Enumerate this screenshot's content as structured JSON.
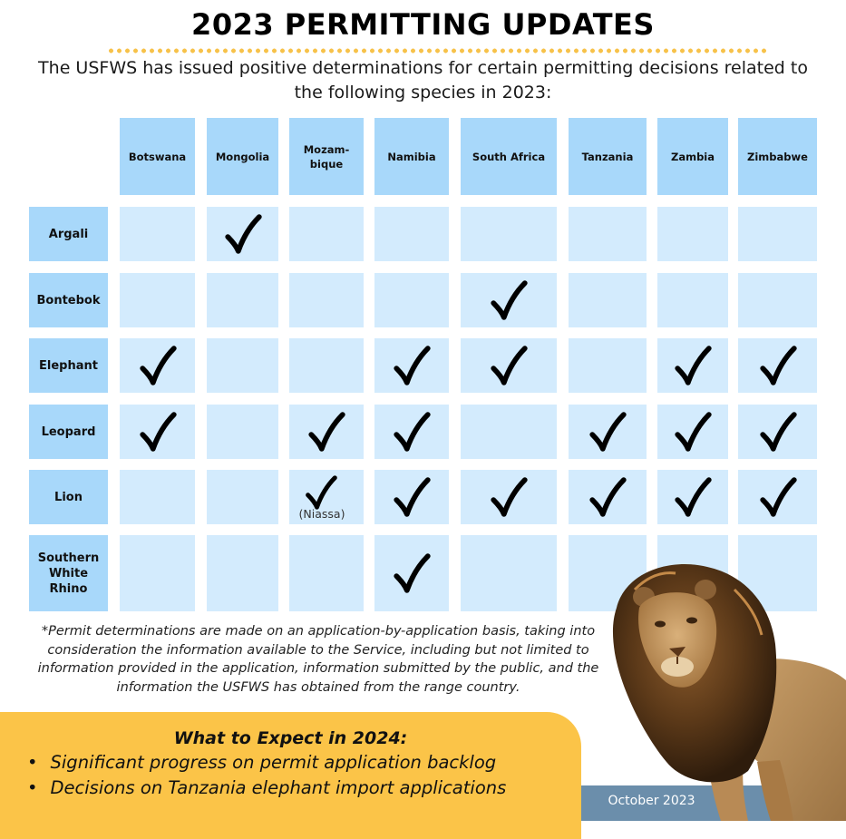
{
  "header": {
    "title": "2023 PERMITTING UPDATES",
    "subtitle": "The USFWS has issued positive determinations for certain permitting decisions related to the following species in 2023:"
  },
  "table": {
    "columns": [
      "Botswana",
      "Mongolia",
      "Mozam-bique",
      "Namibia",
      "South Africa",
      "Tanzania",
      "Zambia",
      "Zimbabwe"
    ],
    "rows": [
      {
        "species": "Argali",
        "checks": [
          false,
          true,
          false,
          false,
          false,
          false,
          false,
          false
        ]
      },
      {
        "species": "Bontebok",
        "checks": [
          false,
          false,
          false,
          false,
          true,
          false,
          false,
          false
        ]
      },
      {
        "species": "Elephant",
        "checks": [
          true,
          false,
          false,
          true,
          true,
          false,
          true,
          true
        ]
      },
      {
        "species": "Leopard",
        "checks": [
          true,
          false,
          true,
          true,
          false,
          true,
          true,
          true
        ]
      },
      {
        "species": "Lion",
        "checks": [
          false,
          false,
          true,
          true,
          true,
          true,
          true,
          true
        ]
      },
      {
        "species": "Southern White Rhino",
        "checks": [
          false,
          false,
          false,
          true,
          false,
          false,
          false,
          false
        ]
      }
    ],
    "lion_mozambique_note": "(Niassa)"
  },
  "disclaimer": "*Permit determinations are made on an application-by-application basis, taking into consideration the information available to the Service, including but not limited to information provided in the application, information submitted by the public, and the information the USFWS has obtained from the range country.",
  "expect": {
    "title": "What to Expect in 2024:",
    "items": [
      "Significant progress on permit application backlog",
      "Decisions on Tanzania elephant import applications"
    ]
  },
  "footer": {
    "date": "October 2023"
  },
  "colors": {
    "header_cell": "#a8d8fa",
    "data_cell": "#d3ebfd",
    "accent_yellow": "#fbc448",
    "footer_band": "#6b8eab"
  },
  "icons": {
    "check": "checkmark-icon",
    "image": "lion-photo"
  }
}
